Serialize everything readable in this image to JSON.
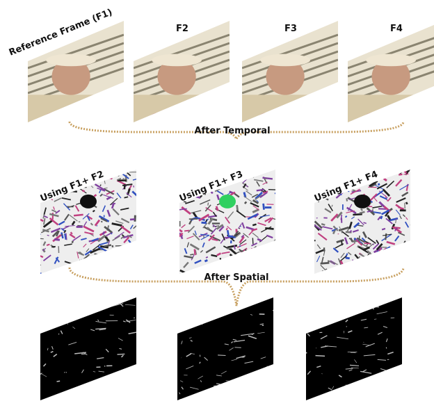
{
  "frames": [
    {
      "label": "Reference Frame (F1)"
    },
    {
      "label": "F2"
    },
    {
      "label": "F3"
    },
    {
      "label": "F4"
    }
  ],
  "temporal": {
    "label": "After Temporal"
  },
  "differences": [
    {
      "label": "Using F1+ F2"
    },
    {
      "label": "Using F1+ F3"
    },
    {
      "label": "Using F1+ F4"
    }
  ],
  "spatial": {
    "label": "After Spatial"
  }
}
